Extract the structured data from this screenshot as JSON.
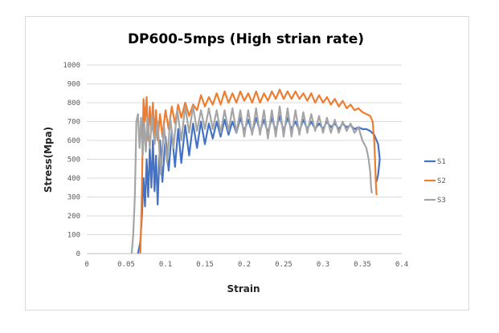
{
  "chart_data": {
    "type": "line",
    "title": "DP600-5mps (High strian rate)",
    "xlabel": "Strain",
    "ylabel": "Stress(Mpa)",
    "xlim": [
      0,
      0.4
    ],
    "ylim": [
      0,
      1000
    ],
    "xticks": [
      0,
      0.05,
      0.1,
      0.15,
      0.2,
      0.25,
      0.3,
      0.35,
      0.4
    ],
    "xtick_labels": [
      "0",
      "0.05",
      "0.1",
      "0.15",
      "0.2",
      "0.25",
      "0.3",
      "0.35",
      "0.4"
    ],
    "yticks": [
      0,
      100,
      200,
      300,
      400,
      500,
      600,
      700,
      800,
      900,
      1000
    ],
    "ytick_labels": [
      "0",
      "100",
      "200",
      "300",
      "400",
      "500",
      "600",
      "700",
      "800",
      "900",
      "1000"
    ],
    "grid": true,
    "legend_position": "right",
    "series": [
      {
        "name": "S1",
        "color": "#4472C4",
        "points": [
          [
            0.065,
            0
          ],
          [
            0.068,
            60
          ],
          [
            0.07,
            200
          ],
          [
            0.072,
            400
          ],
          [
            0.074,
            250
          ],
          [
            0.076,
            500
          ],
          [
            0.078,
            300
          ],
          [
            0.08,
            560
          ],
          [
            0.082,
            350
          ],
          [
            0.084,
            600
          ],
          [
            0.086,
            330
          ],
          [
            0.088,
            520
          ],
          [
            0.09,
            260
          ],
          [
            0.093,
            600
          ],
          [
            0.096,
            380
          ],
          [
            0.1,
            620
          ],
          [
            0.104,
            440
          ],
          [
            0.108,
            650
          ],
          [
            0.112,
            460
          ],
          [
            0.116,
            660
          ],
          [
            0.12,
            480
          ],
          [
            0.125,
            680
          ],
          [
            0.13,
            520
          ],
          [
            0.135,
            690
          ],
          [
            0.14,
            560
          ],
          [
            0.145,
            700
          ],
          [
            0.15,
            580
          ],
          [
            0.155,
            690
          ],
          [
            0.16,
            610
          ],
          [
            0.165,
            700
          ],
          [
            0.17,
            620
          ],
          [
            0.175,
            710
          ],
          [
            0.18,
            630
          ],
          [
            0.185,
            700
          ],
          [
            0.19,
            640
          ],
          [
            0.195,
            720
          ],
          [
            0.2,
            650
          ],
          [
            0.205,
            710
          ],
          [
            0.21,
            640
          ],
          [
            0.215,
            720
          ],
          [
            0.22,
            650
          ],
          [
            0.225,
            710
          ],
          [
            0.23,
            640
          ],
          [
            0.235,
            720
          ],
          [
            0.24,
            650
          ],
          [
            0.245,
            730
          ],
          [
            0.25,
            650
          ],
          [
            0.255,
            720
          ],
          [
            0.26,
            660
          ],
          [
            0.265,
            700
          ],
          [
            0.27,
            650
          ],
          [
            0.275,
            710
          ],
          [
            0.28,
            660
          ],
          [
            0.285,
            700
          ],
          [
            0.29,
            660
          ],
          [
            0.295,
            690
          ],
          [
            0.3,
            660
          ],
          [
            0.305,
            700
          ],
          [
            0.31,
            670
          ],
          [
            0.315,
            690
          ],
          [
            0.32,
            660
          ],
          [
            0.325,
            690
          ],
          [
            0.33,
            670
          ],
          [
            0.335,
            680
          ],
          [
            0.34,
            660
          ],
          [
            0.345,
            670
          ],
          [
            0.35,
            660
          ],
          [
            0.355,
            660
          ],
          [
            0.36,
            650
          ],
          [
            0.365,
            630
          ],
          [
            0.37,
            580
          ],
          [
            0.372,
            500
          ],
          [
            0.37,
            420
          ],
          [
            0.368,
            380
          ]
        ]
      },
      {
        "name": "S2",
        "color": "#ED7D31",
        "points": [
          [
            0.068,
            0
          ],
          [
            0.069,
            150
          ],
          [
            0.07,
            350
          ],
          [
            0.071,
            600
          ],
          [
            0.072,
            820
          ],
          [
            0.074,
            700
          ],
          [
            0.076,
            830
          ],
          [
            0.078,
            600
          ],
          [
            0.08,
            780
          ],
          [
            0.082,
            650
          ],
          [
            0.084,
            800
          ],
          [
            0.086,
            620
          ],
          [
            0.088,
            760
          ],
          [
            0.09,
            600
          ],
          [
            0.093,
            740
          ],
          [
            0.096,
            620
          ],
          [
            0.1,
            760
          ],
          [
            0.104,
            660
          ],
          [
            0.108,
            780
          ],
          [
            0.112,
            690
          ],
          [
            0.116,
            790
          ],
          [
            0.12,
            720
          ],
          [
            0.125,
            800
          ],
          [
            0.13,
            730
          ],
          [
            0.135,
            790
          ],
          [
            0.14,
            760
          ],
          [
            0.145,
            840
          ],
          [
            0.15,
            780
          ],
          [
            0.155,
            830
          ],
          [
            0.16,
            790
          ],
          [
            0.165,
            850
          ],
          [
            0.17,
            790
          ],
          [
            0.175,
            860
          ],
          [
            0.18,
            800
          ],
          [
            0.185,
            850
          ],
          [
            0.19,
            800
          ],
          [
            0.195,
            860
          ],
          [
            0.2,
            810
          ],
          [
            0.205,
            850
          ],
          [
            0.21,
            800
          ],
          [
            0.215,
            860
          ],
          [
            0.22,
            800
          ],
          [
            0.225,
            850
          ],
          [
            0.23,
            810
          ],
          [
            0.235,
            860
          ],
          [
            0.24,
            820
          ],
          [
            0.245,
            870
          ],
          [
            0.25,
            820
          ],
          [
            0.255,
            860
          ],
          [
            0.26,
            820
          ],
          [
            0.265,
            860
          ],
          [
            0.27,
            820
          ],
          [
            0.275,
            850
          ],
          [
            0.28,
            810
          ],
          [
            0.285,
            850
          ],
          [
            0.29,
            800
          ],
          [
            0.295,
            840
          ],
          [
            0.3,
            800
          ],
          [
            0.305,
            830
          ],
          [
            0.31,
            790
          ],
          [
            0.315,
            820
          ],
          [
            0.32,
            780
          ],
          [
            0.325,
            810
          ],
          [
            0.33,
            770
          ],
          [
            0.335,
            790
          ],
          [
            0.34,
            760
          ],
          [
            0.345,
            770
          ],
          [
            0.35,
            750
          ],
          [
            0.355,
            740
          ],
          [
            0.36,
            730
          ],
          [
            0.363,
            700
          ],
          [
            0.365,
            600
          ],
          [
            0.366,
            500
          ],
          [
            0.367,
            380
          ],
          [
            0.368,
            310
          ]
        ]
      },
      {
        "name": "S3",
        "color": "#A5A5A5",
        "points": [
          [
            0.057,
            0
          ],
          [
            0.059,
            100
          ],
          [
            0.061,
            300
          ],
          [
            0.062,
            500
          ],
          [
            0.063,
            700
          ],
          [
            0.065,
            740
          ],
          [
            0.067,
            560
          ],
          [
            0.069,
            720
          ],
          [
            0.071,
            520
          ],
          [
            0.073,
            700
          ],
          [
            0.075,
            540
          ],
          [
            0.077,
            720
          ],
          [
            0.08,
            560
          ],
          [
            0.083,
            730
          ],
          [
            0.086,
            580
          ],
          [
            0.09,
            700
          ],
          [
            0.094,
            420
          ],
          [
            0.098,
            680
          ],
          [
            0.102,
            480
          ],
          [
            0.106,
            720
          ],
          [
            0.11,
            560
          ],
          [
            0.115,
            760
          ],
          [
            0.12,
            600
          ],
          [
            0.125,
            780
          ],
          [
            0.13,
            640
          ],
          [
            0.135,
            780
          ],
          [
            0.14,
            650
          ],
          [
            0.145,
            760
          ],
          [
            0.15,
            660
          ],
          [
            0.155,
            770
          ],
          [
            0.16,
            660
          ],
          [
            0.165,
            760
          ],
          [
            0.17,
            640
          ],
          [
            0.175,
            760
          ],
          [
            0.18,
            650
          ],
          [
            0.185,
            770
          ],
          [
            0.19,
            640
          ],
          [
            0.195,
            760
          ],
          [
            0.2,
            620
          ],
          [
            0.205,
            760
          ],
          [
            0.21,
            630
          ],
          [
            0.215,
            770
          ],
          [
            0.22,
            630
          ],
          [
            0.225,
            760
          ],
          [
            0.23,
            610
          ],
          [
            0.235,
            760
          ],
          [
            0.24,
            620
          ],
          [
            0.245,
            780
          ],
          [
            0.25,
            620
          ],
          [
            0.255,
            770
          ],
          [
            0.26,
            620
          ],
          [
            0.265,
            760
          ],
          [
            0.27,
            630
          ],
          [
            0.275,
            750
          ],
          [
            0.28,
            640
          ],
          [
            0.285,
            740
          ],
          [
            0.29,
            650
          ],
          [
            0.295,
            730
          ],
          [
            0.3,
            640
          ],
          [
            0.305,
            720
          ],
          [
            0.31,
            640
          ],
          [
            0.315,
            710
          ],
          [
            0.32,
            640
          ],
          [
            0.325,
            700
          ],
          [
            0.33,
            650
          ],
          [
            0.335,
            690
          ],
          [
            0.34,
            640
          ],
          [
            0.345,
            670
          ],
          [
            0.35,
            600
          ],
          [
            0.355,
            560
          ],
          [
            0.358,
            500
          ],
          [
            0.36,
            430
          ],
          [
            0.361,
            350
          ],
          [
            0.362,
            320
          ]
        ]
      }
    ]
  }
}
